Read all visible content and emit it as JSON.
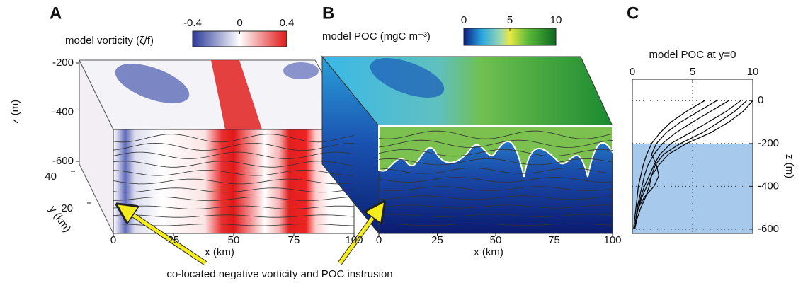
{
  "chart_data": [
    {
      "type": "volume",
      "label": "A",
      "colorbar_title": "model vorticity (ζ/f)",
      "colorbar_lim": [
        -0.4,
        0.4
      ],
      "colorbar_ticks": [
        -0.4,
        0,
        0.4
      ],
      "xlabel": "x (km)",
      "xlim": [
        0,
        100
      ],
      "xticks": [
        0,
        25,
        50,
        75,
        100
      ],
      "ylabel": "y (km)",
      "ylim": [
        0,
        50
      ],
      "yticks": [
        20,
        40
      ],
      "zlabel": "z (m)",
      "zlim": [
        -600,
        -200
      ],
      "zticks": [
        -200,
        -400,
        -600
      ]
    },
    {
      "type": "volume",
      "label": "B",
      "colorbar_title": "model POC (mgC m⁻³)",
      "colorbar_lim": [
        0,
        10
      ],
      "colorbar_ticks": [
        0,
        5,
        10
      ],
      "xlabel": "x (km)",
      "xlim": [
        0,
        100
      ],
      "xticks": [
        0,
        25,
        50,
        75,
        100
      ]
    },
    {
      "type": "line",
      "label": "C",
      "title": "model POC at y=0",
      "ylabel": "z (m)",
      "xlim": [
        0,
        10
      ],
      "xticks": [
        0,
        5,
        10
      ],
      "ylim": [
        -620,
        100
      ],
      "yticks": [
        0,
        -200,
        -400,
        -600
      ],
      "grid": true,
      "shaded": {
        "ylim": [
          -620,
          -200
        ],
        "color": "#a6c9ec"
      },
      "y": [
        0,
        -50,
        -100,
        -150,
        -200,
        -250,
        -300,
        -350,
        -400,
        -450,
        -500,
        -550,
        -600
      ],
      "series": [
        {
          "color": "#000000",
          "values": [
            10,
            9.2,
            8,
            6.5,
            4.5,
            3,
            2.2,
            1.6,
            1.2,
            0.8,
            0.5,
            0.3,
            0.2
          ]
        },
        {
          "color": "#000000",
          "values": [
            9,
            7.8,
            6.3,
            4.8,
            3.2,
            2.3,
            1.8,
            1.4,
            1,
            0.7,
            0.5,
            0.3,
            0.2
          ]
        },
        {
          "color": "#000000",
          "values": [
            8,
            6.5,
            5,
            3.6,
            2.5,
            1.8,
            1.3,
            1,
            0.8,
            0.6,
            0.4,
            0.3,
            0.2
          ]
        },
        {
          "color": "#000000",
          "values": [
            7,
            5.5,
            4,
            2.8,
            2,
            1.6,
            2,
            2.2,
            1.8,
            1,
            0.5,
            0.3,
            0.2
          ]
        },
        {
          "color": "#000000",
          "values": [
            6,
            4.5,
            3.2,
            2.3,
            1.6,
            1.2,
            0.9,
            0.7,
            0.5,
            0.4,
            0.3,
            0.2,
            0.1
          ]
        },
        {
          "color": "#000000",
          "values": [
            9.5,
            8.5,
            7.2,
            5.8,
            4,
            2.6,
            1.9,
            1.6,
            1.4,
            1.1,
            0.7,
            0.4,
            0.2
          ]
        }
      ]
    }
  ],
  "annotation": "co-located negative vorticity and POC instrusion"
}
